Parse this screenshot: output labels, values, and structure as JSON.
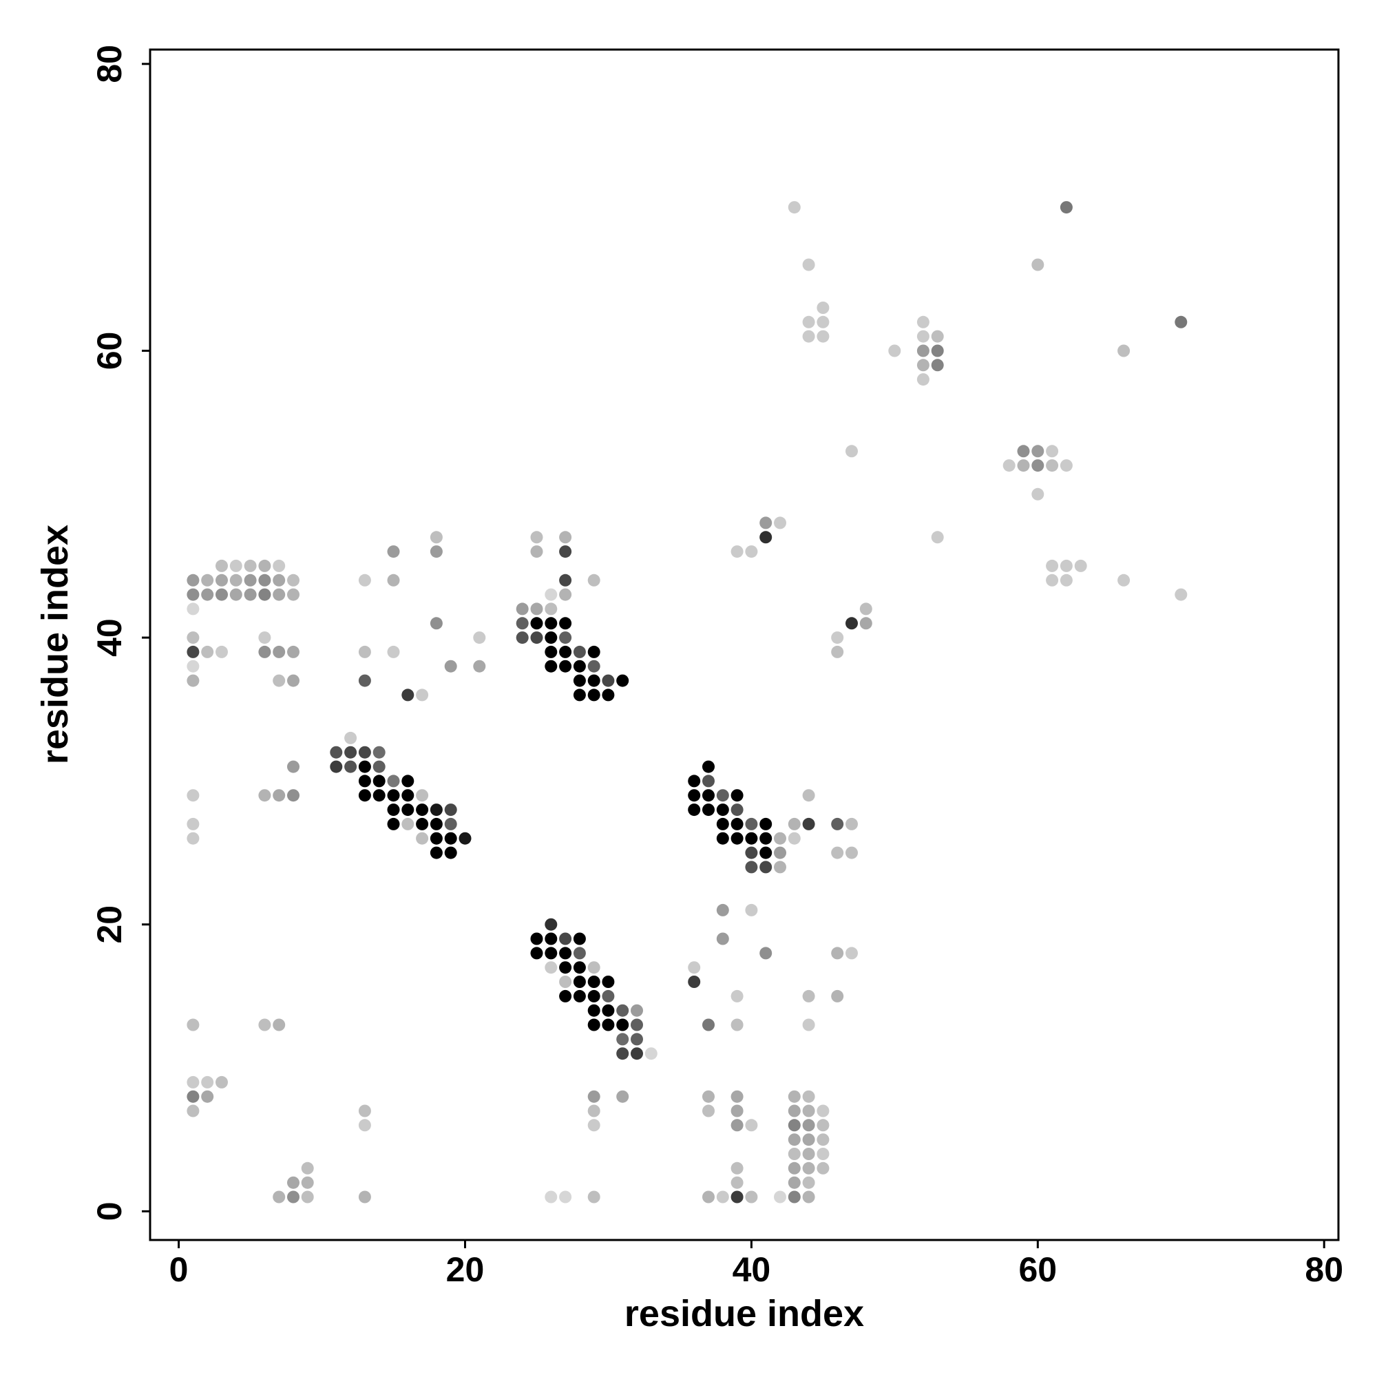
{
  "chart_data": {
    "type": "scatter",
    "title": "",
    "xlabel": "residue index",
    "ylabel": "residue index",
    "xlim": [
      -2,
      81
    ],
    "ylim": [
      -2,
      81
    ],
    "xticks": [
      0,
      20,
      40,
      60,
      80
    ],
    "yticks": [
      0,
      20,
      40,
      60,
      80
    ],
    "xtick_labels": [
      "0",
      "20",
      "40",
      "60",
      "80"
    ],
    "ytick_labels": [
      "0",
      "20",
      "40",
      "60",
      "80"
    ],
    "grid": false,
    "legend": "none",
    "point_color": "#000000",
    "point_encoding": "gray level = contact strength (0 light, 1 black)",
    "points": [
      [
        1,
        44,
        0.35
      ],
      [
        2,
        44,
        0.25
      ],
      [
        3,
        44,
        0.3
      ],
      [
        4,
        44,
        0.25
      ],
      [
        5,
        44,
        0.35
      ],
      [
        6,
        44,
        0.4
      ],
      [
        7,
        44,
        0.3
      ],
      [
        8,
        44,
        0.2
      ],
      [
        1,
        43,
        0.4
      ],
      [
        2,
        43,
        0.35
      ],
      [
        3,
        43,
        0.4
      ],
      [
        4,
        43,
        0.3
      ],
      [
        5,
        43,
        0.35
      ],
      [
        6,
        43,
        0.45
      ],
      [
        7,
        43,
        0.3
      ],
      [
        8,
        43,
        0.25
      ],
      [
        3,
        45,
        0.2
      ],
      [
        4,
        45,
        0.15
      ],
      [
        5,
        45,
        0.2
      ],
      [
        6,
        45,
        0.25
      ],
      [
        7,
        45,
        0.15
      ],
      [
        1,
        42,
        0.1
      ],
      [
        1,
        40,
        0.2
      ],
      [
        1,
        39,
        0.7
      ],
      [
        2,
        39,
        0.2
      ],
      [
        3,
        39,
        0.15
      ],
      [
        1,
        38,
        0.1
      ],
      [
        1,
        37,
        0.25
      ],
      [
        6,
        40,
        0.15
      ],
      [
        6,
        39,
        0.4
      ],
      [
        7,
        39,
        0.35
      ],
      [
        8,
        39,
        0.3
      ],
      [
        7,
        37,
        0.2
      ],
      [
        8,
        37,
        0.3
      ],
      [
        13,
        44,
        0.15
      ],
      [
        15,
        46,
        0.35
      ],
      [
        15,
        44,
        0.25
      ],
      [
        18,
        47,
        0.2
      ],
      [
        18,
        46,
        0.35
      ],
      [
        18,
        41,
        0.4
      ],
      [
        13,
        39,
        0.2
      ],
      [
        15,
        39,
        0.15
      ],
      [
        13,
        37,
        0.6
      ],
      [
        16,
        36,
        0.75
      ],
      [
        17,
        36,
        0.15
      ],
      [
        19,
        38,
        0.35
      ],
      [
        21,
        40,
        0.15
      ],
      [
        21,
        38,
        0.3
      ],
      [
        12,
        33,
        0.15
      ],
      [
        11,
        32,
        0.65
      ],
      [
        12,
        32,
        0.7
      ],
      [
        13,
        32,
        0.7
      ],
      [
        14,
        32,
        0.55
      ],
      [
        11,
        31,
        0.75
      ],
      [
        12,
        31,
        0.65
      ],
      [
        13,
        31,
        1.0
      ],
      [
        14,
        31,
        0.6
      ],
      [
        13,
        30,
        1.0
      ],
      [
        14,
        30,
        1.0
      ],
      [
        15,
        30,
        0.5
      ],
      [
        16,
        30,
        1.0
      ],
      [
        13,
        29,
        1.0
      ],
      [
        14,
        29,
        1.0
      ],
      [
        15,
        29,
        1.0
      ],
      [
        16,
        29,
        1.0
      ],
      [
        17,
        29,
        0.2
      ],
      [
        15,
        28,
        1.0
      ],
      [
        16,
        28,
        1.0
      ],
      [
        17,
        28,
        1.0
      ],
      [
        18,
        28,
        0.9
      ],
      [
        19,
        28,
        0.7
      ],
      [
        15,
        27,
        1.0
      ],
      [
        16,
        27,
        0.2
      ],
      [
        17,
        27,
        1.0
      ],
      [
        18,
        27,
        1.0
      ],
      [
        19,
        27,
        0.6
      ],
      [
        17,
        26,
        0.2
      ],
      [
        18,
        26,
        1.0
      ],
      [
        19,
        26,
        1.0
      ],
      [
        20,
        26,
        0.9
      ],
      [
        18,
        25,
        1.0
      ],
      [
        19,
        25,
        1.0
      ],
      [
        8,
        31,
        0.35
      ],
      [
        1,
        29,
        0.15
      ],
      [
        6,
        29,
        0.25
      ],
      [
        7,
        29,
        0.3
      ],
      [
        8,
        29,
        0.4
      ],
      [
        1,
        27,
        0.15
      ],
      [
        1,
        26,
        0.15
      ],
      [
        24,
        42,
        0.35
      ],
      [
        25,
        42,
        0.3
      ],
      [
        26,
        42,
        0.2
      ],
      [
        26,
        43,
        0.1
      ],
      [
        27,
        43,
        0.25
      ],
      [
        27,
        44,
        0.7
      ],
      [
        25,
        47,
        0.2
      ],
      [
        27,
        47,
        0.25
      ],
      [
        25,
        46,
        0.25
      ],
      [
        27,
        46,
        0.7
      ],
      [
        29,
        44,
        0.2
      ],
      [
        24,
        41,
        0.6
      ],
      [
        25,
        41,
        1.0
      ],
      [
        26,
        41,
        1.0
      ],
      [
        27,
        41,
        1.0
      ],
      [
        24,
        40,
        0.65
      ],
      [
        25,
        40,
        0.7
      ],
      [
        26,
        40,
        1.0
      ],
      [
        27,
        40,
        0.6
      ],
      [
        26,
        39,
        1.0
      ],
      [
        27,
        39,
        1.0
      ],
      [
        28,
        39,
        0.65
      ],
      [
        29,
        39,
        1.0
      ],
      [
        26,
        38,
        1.0
      ],
      [
        27,
        38,
        1.0
      ],
      [
        28,
        38,
        1.0
      ],
      [
        29,
        38,
        0.6
      ],
      [
        28,
        37,
        1.0
      ],
      [
        29,
        37,
        1.0
      ],
      [
        30,
        37,
        0.7
      ],
      [
        31,
        37,
        1.0
      ],
      [
        28,
        36,
        1.0
      ],
      [
        29,
        36,
        1.0
      ],
      [
        30,
        36,
        1.0
      ],
      [
        36,
        30,
        1.0
      ],
      [
        37,
        30,
        0.65
      ],
      [
        37,
        31,
        1.0
      ],
      [
        36,
        29,
        1.0
      ],
      [
        37,
        29,
        1.0
      ],
      [
        38,
        29,
        0.6
      ],
      [
        39,
        29,
        1.0
      ],
      [
        36,
        28,
        1.0
      ],
      [
        37,
        28,
        1.0
      ],
      [
        38,
        28,
        1.0
      ],
      [
        39,
        28,
        0.65
      ],
      [
        38,
        27,
        1.0
      ],
      [
        39,
        27,
        1.0
      ],
      [
        40,
        27,
        0.6
      ],
      [
        41,
        27,
        1.0
      ],
      [
        38,
        26,
        1.0
      ],
      [
        39,
        26,
        1.0
      ],
      [
        40,
        26,
        1.0
      ],
      [
        41,
        26,
        1.0
      ],
      [
        42,
        26,
        0.25
      ],
      [
        43,
        26,
        0.15
      ],
      [
        40,
        25,
        0.7
      ],
      [
        41,
        25,
        1.0
      ],
      [
        42,
        25,
        0.35
      ],
      [
        40,
        24,
        0.65
      ],
      [
        41,
        24,
        0.7
      ],
      [
        42,
        24,
        0.25
      ],
      [
        43,
        27,
        0.25
      ],
      [
        44,
        27,
        0.75
      ],
      [
        44,
        29,
        0.2
      ],
      [
        46,
        27,
        0.6
      ],
      [
        47,
        27,
        0.2
      ],
      [
        46,
        25,
        0.2
      ],
      [
        47,
        25,
        0.2
      ],
      [
        26,
        20,
        0.8
      ],
      [
        25,
        19,
        1.0
      ],
      [
        26,
        19,
        1.0
      ],
      [
        27,
        19,
        0.7
      ],
      [
        28,
        19,
        1.0
      ],
      [
        25,
        18,
        1.0
      ],
      [
        26,
        18,
        1.0
      ],
      [
        27,
        18,
        1.0
      ],
      [
        28,
        18,
        0.6
      ],
      [
        26,
        17,
        0.15
      ],
      [
        27,
        17,
        1.0
      ],
      [
        28,
        17,
        1.0
      ],
      [
        29,
        17,
        0.2
      ],
      [
        27,
        16,
        0.2
      ],
      [
        28,
        16,
        1.0
      ],
      [
        29,
        16,
        1.0
      ],
      [
        30,
        16,
        1.0
      ],
      [
        27,
        15,
        1.0
      ],
      [
        28,
        15,
        1.0
      ],
      [
        29,
        15,
        1.0
      ],
      [
        30,
        15,
        0.6
      ],
      [
        29,
        14,
        1.0
      ],
      [
        30,
        14,
        1.0
      ],
      [
        31,
        14,
        0.6
      ],
      [
        32,
        14,
        0.35
      ],
      [
        29,
        13,
        1.0
      ],
      [
        30,
        13,
        1.0
      ],
      [
        31,
        13,
        1.0
      ],
      [
        32,
        13,
        0.6
      ],
      [
        31,
        12,
        0.55
      ],
      [
        32,
        12,
        0.6
      ],
      [
        31,
        11,
        0.7
      ],
      [
        32,
        11,
        0.75
      ],
      [
        33,
        11,
        0.1
      ],
      [
        36,
        17,
        0.15
      ],
      [
        36,
        16,
        0.75
      ],
      [
        38,
        21,
        0.35
      ],
      [
        38,
        19,
        0.35
      ],
      [
        40,
        21,
        0.15
      ],
      [
        41,
        18,
        0.4
      ],
      [
        39,
        15,
        0.15
      ],
      [
        37,
        13,
        0.5
      ],
      [
        39,
        13,
        0.2
      ],
      [
        44,
        15,
        0.2
      ],
      [
        44,
        13,
        0.15
      ],
      [
        46,
        18,
        0.25
      ],
      [
        47,
        18,
        0.15
      ],
      [
        46,
        15,
        0.25
      ],
      [
        1,
        13,
        0.2
      ],
      [
        6,
        13,
        0.2
      ],
      [
        7,
        13,
        0.25
      ],
      [
        1,
        9,
        0.15
      ],
      [
        2,
        9,
        0.15
      ],
      [
        3,
        9,
        0.2
      ],
      [
        1,
        8,
        0.45
      ],
      [
        2,
        8,
        0.3
      ],
      [
        1,
        7,
        0.2
      ],
      [
        13,
        7,
        0.2
      ],
      [
        13,
        6,
        0.15
      ],
      [
        9,
        3,
        0.2
      ],
      [
        8,
        2,
        0.3
      ],
      [
        9,
        2,
        0.25
      ],
      [
        7,
        1,
        0.25
      ],
      [
        8,
        1,
        0.4
      ],
      [
        9,
        1,
        0.2
      ],
      [
        13,
        1,
        0.25
      ],
      [
        26,
        1,
        0.1
      ],
      [
        27,
        1,
        0.1
      ],
      [
        29,
        1,
        0.2
      ],
      [
        29,
        8,
        0.35
      ],
      [
        29,
        7,
        0.2
      ],
      [
        29,
        6,
        0.15
      ],
      [
        31,
        8,
        0.3
      ],
      [
        37,
        8,
        0.25
      ],
      [
        37,
        7,
        0.2
      ],
      [
        39,
        8,
        0.3
      ],
      [
        39,
        7,
        0.3
      ],
      [
        39,
        6,
        0.35
      ],
      [
        40,
        6,
        0.15
      ],
      [
        39,
        3,
        0.2
      ],
      [
        39,
        2,
        0.2
      ],
      [
        37,
        1,
        0.25
      ],
      [
        38,
        1,
        0.15
      ],
      [
        39,
        1,
        0.75
      ],
      [
        40,
        1,
        0.2
      ],
      [
        42,
        1,
        0.1
      ],
      [
        43,
        8,
        0.25
      ],
      [
        44,
        8,
        0.2
      ],
      [
        43,
        7,
        0.3
      ],
      [
        44,
        7,
        0.25
      ],
      [
        45,
        7,
        0.15
      ],
      [
        43,
        6,
        0.45
      ],
      [
        44,
        6,
        0.35
      ],
      [
        45,
        6,
        0.2
      ],
      [
        43,
        5,
        0.3
      ],
      [
        44,
        5,
        0.3
      ],
      [
        45,
        5,
        0.2
      ],
      [
        43,
        4,
        0.2
      ],
      [
        44,
        4,
        0.25
      ],
      [
        45,
        4,
        0.15
      ],
      [
        43,
        3,
        0.3
      ],
      [
        44,
        3,
        0.25
      ],
      [
        45,
        3,
        0.2
      ],
      [
        43,
        2,
        0.3
      ],
      [
        44,
        2,
        0.2
      ],
      [
        43,
        1,
        0.45
      ],
      [
        44,
        1,
        0.25
      ],
      [
        39,
        46,
        0.15
      ],
      [
        40,
        46,
        0.15
      ],
      [
        41,
        48,
        0.35
      ],
      [
        42,
        48,
        0.15
      ],
      [
        41,
        47,
        0.8
      ],
      [
        47,
        41,
        0.8
      ],
      [
        48,
        42,
        0.2
      ],
      [
        48,
        41,
        0.3
      ],
      [
        46,
        40,
        0.15
      ],
      [
        46,
        39,
        0.2
      ],
      [
        47,
        53,
        0.15
      ],
      [
        43,
        70,
        0.15
      ],
      [
        44,
        66,
        0.15
      ],
      [
        44,
        62,
        0.15
      ],
      [
        45,
        62,
        0.15
      ],
      [
        45,
        63,
        0.15
      ],
      [
        44,
        61,
        0.15
      ],
      [
        45,
        61,
        0.15
      ],
      [
        50,
        60,
        0.15
      ],
      [
        52,
        62,
        0.15
      ],
      [
        52,
        61,
        0.15
      ],
      [
        53,
        61,
        0.2
      ],
      [
        52,
        60,
        0.35
      ],
      [
        53,
        60,
        0.45
      ],
      [
        52,
        59,
        0.25
      ],
      [
        53,
        59,
        0.45
      ],
      [
        52,
        58,
        0.15
      ],
      [
        53,
        47,
        0.15
      ],
      [
        59,
        53,
        0.4
      ],
      [
        60,
        53,
        0.35
      ],
      [
        61,
        53,
        0.15
      ],
      [
        58,
        52,
        0.15
      ],
      [
        59,
        52,
        0.25
      ],
      [
        60,
        52,
        0.4
      ],
      [
        61,
        52,
        0.2
      ],
      [
        62,
        52,
        0.15
      ],
      [
        60,
        50,
        0.15
      ],
      [
        61,
        45,
        0.15
      ],
      [
        62,
        45,
        0.15
      ],
      [
        63,
        45,
        0.15
      ],
      [
        61,
        44,
        0.15
      ],
      [
        62,
        44,
        0.15
      ],
      [
        66,
        44,
        0.15
      ],
      [
        70,
        43,
        0.15
      ],
      [
        60,
        66,
        0.2
      ],
      [
        62,
        70,
        0.5
      ],
      [
        66,
        60,
        0.2
      ],
      [
        70,
        62,
        0.5
      ]
    ]
  }
}
